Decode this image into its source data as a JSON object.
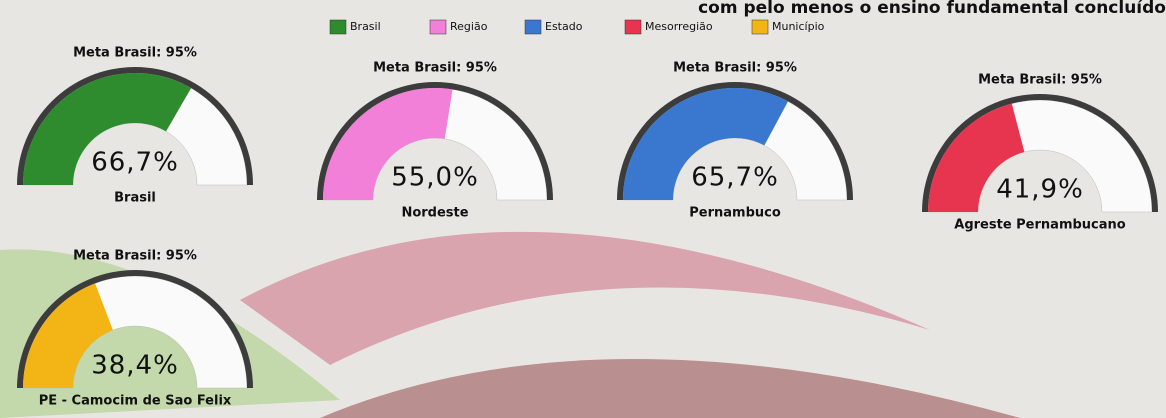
{
  "header": {
    "title": "com pelo menos o ensino fundamental concluído"
  },
  "legend": [
    {
      "name": "Brasil",
      "color": "#2e8b2e"
    },
    {
      "name": "Região",
      "color": "#f27fd8"
    },
    {
      "name": "Estado",
      "color": "#3a78d0"
    },
    {
      "name": "Mesorregião",
      "color": "#e8354f"
    },
    {
      "name": "Município",
      "color": "#f2b515"
    }
  ],
  "chart_data": [
    {
      "type": "gauge",
      "title": "Meta Brasil: 95%",
      "value": 66.7,
      "value_label": "66,7%",
      "label": "Brasil",
      "color": "#2e8b2e",
      "ylim": [
        0,
        100
      ]
    },
    {
      "type": "gauge",
      "title": "Meta Brasil: 95%",
      "value": 55.0,
      "value_label": "55,0%",
      "label": "Nordeste",
      "color": "#f27fd8",
      "ylim": [
        0,
        100
      ]
    },
    {
      "type": "gauge",
      "title": "Meta Brasil: 95%",
      "value": 65.7,
      "value_label": "65,7%",
      "label": "Pernambuco",
      "color": "#3a78d0",
      "ylim": [
        0,
        100
      ]
    },
    {
      "type": "gauge",
      "title": "Meta Brasil: 95%",
      "value": 41.9,
      "value_label": "41,9%",
      "label": "Agreste Pernambucano",
      "color": "#e8354f",
      "ylim": [
        0,
        100
      ]
    },
    {
      "type": "gauge",
      "title": "Meta Brasil: 95%",
      "value": 38.4,
      "value_label": "38,4%",
      "label": "PE - Camocim de Sao Felix",
      "color": "#f2b515",
      "ylim": [
        0,
        100
      ]
    }
  ]
}
